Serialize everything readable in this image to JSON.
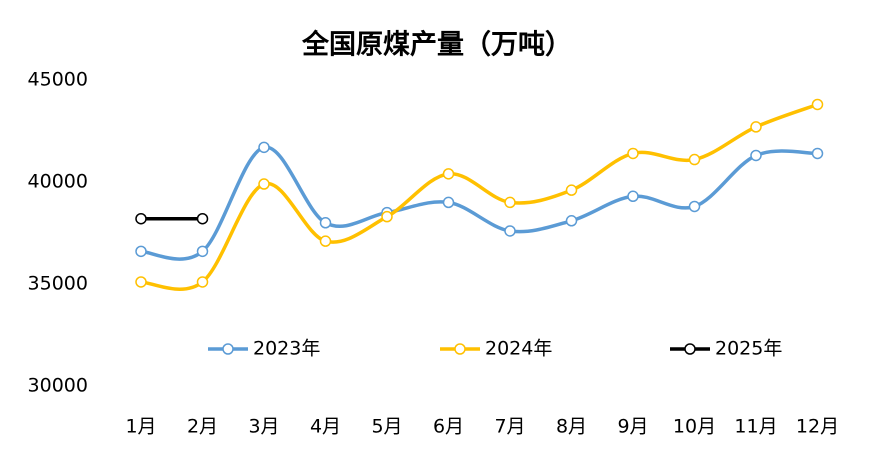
{
  "chart_data": {
    "type": "line",
    "title": "全国原煤产量（万吨）",
    "categories": [
      "1月",
      "2月",
      "3月",
      "4月",
      "5月",
      "6月",
      "7月",
      "8月",
      "9月",
      "10月",
      "11月",
      "12月"
    ],
    "series": [
      {
        "name": "2023年",
        "color": "#5b9bd5",
        "values": [
          36600,
          36600,
          41700,
          38000,
          38500,
          39000,
          37600,
          38100,
          39300,
          38800,
          41300,
          41400
        ]
      },
      {
        "name": "2024年",
        "color": "#ffc000",
        "values": [
          35100,
          35100,
          39900,
          37100,
          38300,
          40400,
          39000,
          39600,
          41400,
          41100,
          42700,
          43800
        ]
      },
      {
        "name": "2025年",
        "color": "#000000",
        "values": [
          38200,
          38200,
          null,
          null,
          null,
          null,
          null,
          null,
          null,
          null,
          null,
          null
        ]
      }
    ],
    "ylim": [
      30000,
      45000
    ],
    "yticks": [
      30000,
      35000,
      40000,
      45000
    ],
    "grid": false,
    "smooth": true,
    "legend": "lower center"
  }
}
